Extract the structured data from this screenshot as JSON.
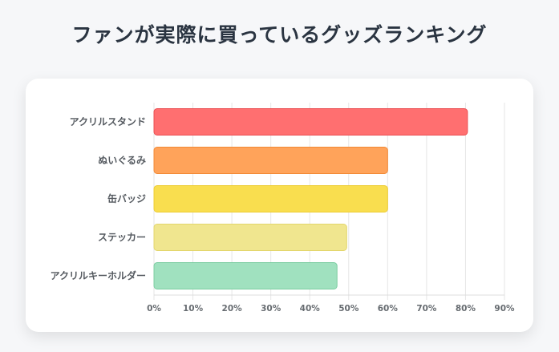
{
  "page": {
    "title": "ファンが実際に買っているグッズランキング"
  },
  "chart_data": {
    "type": "bar",
    "orientation": "horizontal",
    "title": "",
    "xlabel": "",
    "ylabel": "",
    "categories": [
      "アクリルスタンド",
      "ぬいぐるみ",
      "缶バッジ",
      "ステッカー",
      "アクリルキーホルダー"
    ],
    "values": [
      80.5,
      60,
      60,
      49.5,
      47
    ],
    "unit": "%",
    "xlim": [
      0,
      90
    ],
    "xticks": [
      "0%",
      "10%",
      "20%",
      "30%",
      "40%",
      "50%",
      "60%",
      "70%",
      "80%",
      "90%"
    ],
    "grid": true,
    "legend": "none",
    "colors": [
      {
        "fill": "#ff6f70",
        "stroke": "#ea4f52"
      },
      {
        "fill": "#ffa35a",
        "stroke": "#f28a36"
      },
      {
        "fill": "#f9de4f",
        "stroke": "#edcc33"
      },
      {
        "fill": "#f0e68f",
        "stroke": "#e3d66c"
      },
      {
        "fill": "#a0e1bf",
        "stroke": "#7ccda2"
      }
    ]
  }
}
